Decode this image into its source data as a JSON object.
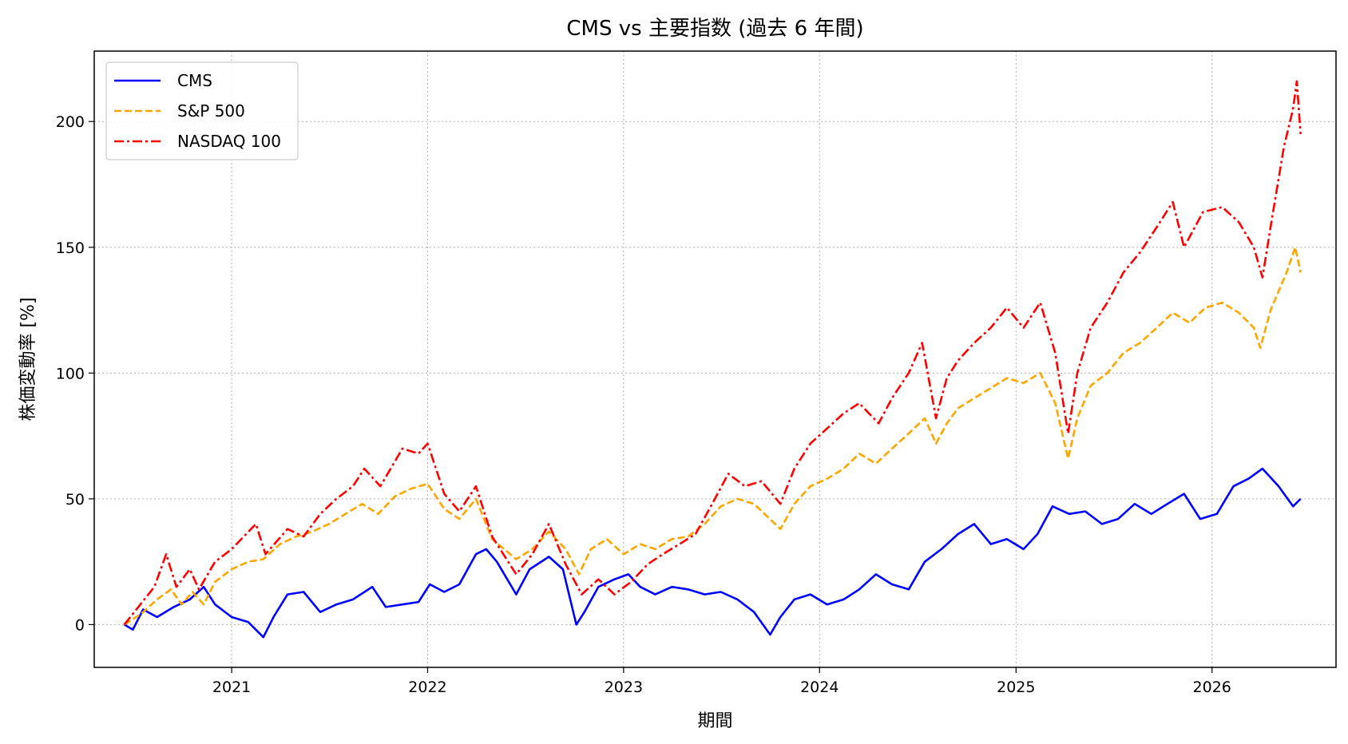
{
  "chart_data": {
    "type": "line",
    "title": "CMS vs 主要指数 (過去 6 年間)",
    "xlabel": "期間",
    "ylabel": "株価変動率 [%]",
    "x_ticks": [
      "2021",
      "2022",
      "2023",
      "2024",
      "2025",
      "2026"
    ],
    "y_ticks": [
      "0",
      "50",
      "100",
      "150",
      "200"
    ],
    "xlim": [
      "2020-04-20",
      "2026-08-20"
    ],
    "ylim": [
      -17,
      228
    ],
    "grid": true,
    "legend_position": "top-left",
    "series": [
      {
        "name": "CMS",
        "color": "#0000ff",
        "dash": "solid",
        "points": [
          [
            "2020-06-15",
            0
          ],
          [
            "2020-07-01",
            -2
          ],
          [
            "2020-07-20",
            6
          ],
          [
            "2020-08-15",
            3
          ],
          [
            "2020-09-15",
            7
          ],
          [
            "2020-10-15",
            10
          ],
          [
            "2020-11-10",
            15
          ],
          [
            "2020-12-01",
            8
          ],
          [
            "2021-01-01",
            3
          ],
          [
            "2021-02-01",
            1
          ],
          [
            "2021-03-01",
            -5
          ],
          [
            "2021-03-20",
            3
          ],
          [
            "2021-04-15",
            12
          ],
          [
            "2021-05-15",
            13
          ],
          [
            "2021-06-15",
            5
          ],
          [
            "2021-07-15",
            8
          ],
          [
            "2021-08-15",
            10
          ],
          [
            "2021-09-20",
            15
          ],
          [
            "2021-10-15",
            7
          ],
          [
            "2021-11-15",
            8
          ],
          [
            "2021-12-15",
            9
          ],
          [
            "2022-01-05",
            16
          ],
          [
            "2022-02-01",
            13
          ],
          [
            "2022-03-01",
            16
          ],
          [
            "2022-04-01",
            28
          ],
          [
            "2022-04-20",
            30
          ],
          [
            "2022-05-10",
            25
          ],
          [
            "2022-06-15",
            12
          ],
          [
            "2022-07-10",
            22
          ],
          [
            "2022-08-15",
            27
          ],
          [
            "2022-09-10",
            22
          ],
          [
            "2022-10-05",
            0
          ],
          [
            "2022-10-20",
            5
          ],
          [
            "2022-11-15",
            15
          ],
          [
            "2022-12-15",
            18
          ],
          [
            "2023-01-10",
            20
          ],
          [
            "2023-02-01",
            15
          ],
          [
            "2023-03-01",
            12
          ],
          [
            "2023-04-01",
            15
          ],
          [
            "2023-05-01",
            14
          ],
          [
            "2023-06-01",
            12
          ],
          [
            "2023-07-01",
            13
          ],
          [
            "2023-08-01",
            10
          ],
          [
            "2023-09-01",
            5
          ],
          [
            "2023-10-01",
            -4
          ],
          [
            "2023-10-20",
            3
          ],
          [
            "2023-11-15",
            10
          ],
          [
            "2023-12-15",
            12
          ],
          [
            "2024-01-15",
            8
          ],
          [
            "2024-02-15",
            10
          ],
          [
            "2024-03-15",
            14
          ],
          [
            "2024-04-15",
            20
          ],
          [
            "2024-05-15",
            16
          ],
          [
            "2024-06-15",
            14
          ],
          [
            "2024-07-15",
            25
          ],
          [
            "2024-08-15",
            30
          ],
          [
            "2024-09-15",
            36
          ],
          [
            "2024-10-15",
            40
          ],
          [
            "2024-11-15",
            32
          ],
          [
            "2024-12-15",
            34
          ],
          [
            "2025-01-15",
            30
          ],
          [
            "2025-02-10",
            36
          ],
          [
            "2025-03-10",
            47
          ],
          [
            "2025-04-10",
            44
          ],
          [
            "2025-05-10",
            45
          ],
          [
            "2025-06-10",
            40
          ],
          [
            "2025-07-10",
            42
          ],
          [
            "2025-08-10",
            48
          ],
          [
            "2025-09-10",
            44
          ],
          [
            "2025-10-10",
            48
          ],
          [
            "2025-11-10",
            52
          ],
          [
            "2025-12-10",
            42
          ],
          [
            "2026-01-10",
            44
          ],
          [
            "2026-02-10",
            55
          ],
          [
            "2026-03-10",
            58
          ],
          [
            "2026-04-05",
            62
          ],
          [
            "2026-05-05",
            55
          ],
          [
            "2026-06-01",
            47
          ],
          [
            "2026-06-15",
            50
          ]
        ]
      },
      {
        "name": "S&P 500",
        "color": "#ffa500",
        "dash": "dashed",
        "points": [
          [
            "2020-06-15",
            0
          ],
          [
            "2020-07-15",
            4
          ],
          [
            "2020-08-15",
            10
          ],
          [
            "2020-09-10",
            14
          ],
          [
            "2020-09-30",
            8
          ],
          [
            "2020-10-20",
            13
          ],
          [
            "2020-11-10",
            8
          ],
          [
            "2020-12-01",
            17
          ],
          [
            "2021-01-01",
            22
          ],
          [
            "2021-02-01",
            25
          ],
          [
            "2021-03-01",
            26
          ],
          [
            "2021-04-01",
            32
          ],
          [
            "2021-05-01",
            35
          ],
          [
            "2021-06-01",
            37
          ],
          [
            "2021-07-01",
            40
          ],
          [
            "2021-08-01",
            44
          ],
          [
            "2021-09-01",
            48
          ],
          [
            "2021-10-01",
            44
          ],
          [
            "2021-11-01",
            51
          ],
          [
            "2021-12-01",
            54
          ],
          [
            "2022-01-01",
            56
          ],
          [
            "2022-02-01",
            46
          ],
          [
            "2022-03-01",
            42
          ],
          [
            "2022-04-01",
            50
          ],
          [
            "2022-05-01",
            34
          ],
          [
            "2022-06-15",
            26
          ],
          [
            "2022-07-15",
            30
          ],
          [
            "2022-08-15",
            37
          ],
          [
            "2022-09-15",
            30
          ],
          [
            "2022-10-10",
            20
          ],
          [
            "2022-11-01",
            30
          ],
          [
            "2022-12-01",
            34
          ],
          [
            "2023-01-01",
            28
          ],
          [
            "2023-02-01",
            32
          ],
          [
            "2023-03-01",
            30
          ],
          [
            "2023-04-01",
            34
          ],
          [
            "2023-05-01",
            35
          ],
          [
            "2023-06-01",
            40
          ],
          [
            "2023-07-01",
            47
          ],
          [
            "2023-08-01",
            50
          ],
          [
            "2023-09-01",
            48
          ],
          [
            "2023-10-20",
            38
          ],
          [
            "2023-11-15",
            48
          ],
          [
            "2023-12-15",
            55
          ],
          [
            "2024-01-15",
            58
          ],
          [
            "2024-02-15",
            62
          ],
          [
            "2024-03-15",
            68
          ],
          [
            "2024-04-15",
            64
          ],
          [
            "2024-05-15",
            70
          ],
          [
            "2024-06-15",
            76
          ],
          [
            "2024-07-15",
            82
          ],
          [
            "2024-08-05",
            72
          ],
          [
            "2024-08-25",
            80
          ],
          [
            "2024-09-15",
            86
          ],
          [
            "2024-10-15",
            90
          ],
          [
            "2024-11-15",
            94
          ],
          [
            "2024-12-15",
            98
          ],
          [
            "2025-01-15",
            96
          ],
          [
            "2025-02-15",
            100
          ],
          [
            "2025-03-15",
            88
          ],
          [
            "2025-04-08",
            66
          ],
          [
            "2025-04-25",
            82
          ],
          [
            "2025-05-20",
            95
          ],
          [
            "2025-06-20",
            100
          ],
          [
            "2025-07-20",
            108
          ],
          [
            "2025-08-20",
            112
          ],
          [
            "2025-09-20",
            118
          ],
          [
            "2025-10-20",
            124
          ],
          [
            "2025-11-20",
            120
          ],
          [
            "2025-12-20",
            126
          ],
          [
            "2026-01-20",
            128
          ],
          [
            "2026-02-20",
            124
          ],
          [
            "2026-03-20",
            118
          ],
          [
            "2026-04-01",
            110
          ],
          [
            "2026-04-20",
            125
          ],
          [
            "2026-05-20",
            140
          ],
          [
            "2026-06-05",
            150
          ],
          [
            "2026-06-15",
            140
          ]
        ]
      },
      {
        "name": "NASDAQ 100",
        "color": "#ff0000",
        "dash": "dashdot",
        "points": [
          [
            "2020-06-15",
            0
          ],
          [
            "2020-07-15",
            8
          ],
          [
            "2020-08-10",
            15
          ],
          [
            "2020-09-01",
            28
          ],
          [
            "2020-09-20",
            15
          ],
          [
            "2020-10-15",
            22
          ],
          [
            "2020-11-01",
            14
          ],
          [
            "2020-12-01",
            25
          ],
          [
            "2021-01-01",
            30
          ],
          [
            "2021-02-15",
            40
          ],
          [
            "2021-03-05",
            28
          ],
          [
            "2021-04-15",
            38
          ],
          [
            "2021-05-15",
            35
          ],
          [
            "2021-06-15",
            44
          ],
          [
            "2021-07-15",
            50
          ],
          [
            "2021-08-15",
            55
          ],
          [
            "2021-09-05",
            62
          ],
          [
            "2021-10-05",
            55
          ],
          [
            "2021-11-15",
            70
          ],
          [
            "2021-12-15",
            68
          ],
          [
            "2022-01-01",
            72
          ],
          [
            "2022-02-01",
            52
          ],
          [
            "2022-03-01",
            45
          ],
          [
            "2022-04-01",
            55
          ],
          [
            "2022-05-01",
            35
          ],
          [
            "2022-06-15",
            20
          ],
          [
            "2022-07-15",
            28
          ],
          [
            "2022-08-15",
            40
          ],
          [
            "2022-09-15",
            24
          ],
          [
            "2022-10-15",
            12
          ],
          [
            "2022-11-15",
            18
          ],
          [
            "2022-12-15",
            12
          ],
          [
            "2023-01-15",
            17
          ],
          [
            "2023-02-15",
            24
          ],
          [
            "2023-03-15",
            28
          ],
          [
            "2023-04-15",
            32
          ],
          [
            "2023-05-15",
            36
          ],
          [
            "2023-06-15",
            48
          ],
          [
            "2023-07-15",
            60
          ],
          [
            "2023-08-15",
            55
          ],
          [
            "2023-09-15",
            57
          ],
          [
            "2023-10-20",
            48
          ],
          [
            "2023-11-15",
            62
          ],
          [
            "2023-12-15",
            72
          ],
          [
            "2024-01-15",
            78
          ],
          [
            "2024-02-15",
            84
          ],
          [
            "2024-03-15",
            88
          ],
          [
            "2024-04-20",
            80
          ],
          [
            "2024-05-15",
            90
          ],
          [
            "2024-06-15",
            100
          ],
          [
            "2024-07-10",
            112
          ],
          [
            "2024-08-05",
            82
          ],
          [
            "2024-08-25",
            98
          ],
          [
            "2024-09-15",
            105
          ],
          [
            "2024-10-15",
            112
          ],
          [
            "2024-11-15",
            118
          ],
          [
            "2024-12-15",
            126
          ],
          [
            "2025-01-15",
            118
          ],
          [
            "2025-02-15",
            128
          ],
          [
            "2025-03-15",
            108
          ],
          [
            "2025-04-08",
            76
          ],
          [
            "2025-04-25",
            100
          ],
          [
            "2025-05-20",
            118
          ],
          [
            "2025-06-20",
            128
          ],
          [
            "2025-07-20",
            140
          ],
          [
            "2025-08-20",
            148
          ],
          [
            "2025-09-20",
            158
          ],
          [
            "2025-10-20",
            168
          ],
          [
            "2025-11-10",
            150
          ],
          [
            "2025-12-15",
            164
          ],
          [
            "2026-01-20",
            166
          ],
          [
            "2026-02-20",
            160
          ],
          [
            "2026-03-20",
            150
          ],
          [
            "2026-04-05",
            138
          ],
          [
            "2026-04-20",
            158
          ],
          [
            "2026-05-15",
            190
          ],
          [
            "2026-06-01",
            205
          ],
          [
            "2026-06-08",
            216
          ],
          [
            "2026-06-15",
            195
          ]
        ]
      }
    ]
  }
}
